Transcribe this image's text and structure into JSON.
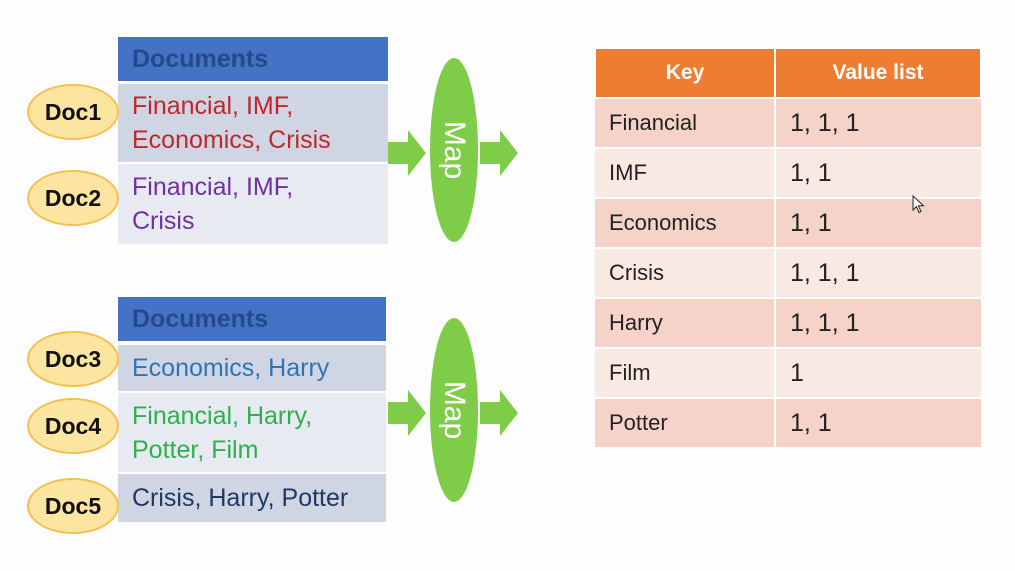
{
  "groups": [
    {
      "header": "Documents",
      "docs": [
        {
          "label": "Doc1",
          "lines": [
            "Financial, IMF,",
            "Economics, Crisis"
          ],
          "color": "#c0272d"
        },
        {
          "label": "Doc2",
          "lines": [
            "Financial, IMF,",
            "Crisis"
          ],
          "color": "#7030a0"
        }
      ],
      "map_label": "Map"
    },
    {
      "header": "Documents",
      "docs": [
        {
          "label": "Doc3",
          "lines": [
            "Economics, Harry"
          ],
          "color": "#2e75b6"
        },
        {
          "label": "Doc4",
          "lines": [
            "Financial, Harry,",
            "Potter, Film"
          ],
          "color": "#2fb04f"
        },
        {
          "label": "Doc5",
          "lines": [
            "Crisis, Harry, Potter"
          ],
          "color": "#1f3864"
        }
      ],
      "map_label": "Map"
    }
  ],
  "table": {
    "headers": [
      "Key",
      "Value list"
    ],
    "rows": [
      {
        "key": "Financial",
        "values": "1, 1, 1"
      },
      {
        "key": "IMF",
        "values": "1, 1"
      },
      {
        "key": "Economics",
        "values": "1, 1"
      },
      {
        "key": "Crisis",
        "values": "1, 1, 1"
      },
      {
        "key": "Harry",
        "values": "1, 1, 1"
      },
      {
        "key": "Film",
        "values": "1"
      },
      {
        "key": "Potter",
        "values": "1, 1"
      }
    ]
  },
  "colors": {
    "header_blue": "#4472c4",
    "oval_yellow": "#fce5a0",
    "map_green": "#7ecc48",
    "table_orange": "#ee7d31"
  }
}
